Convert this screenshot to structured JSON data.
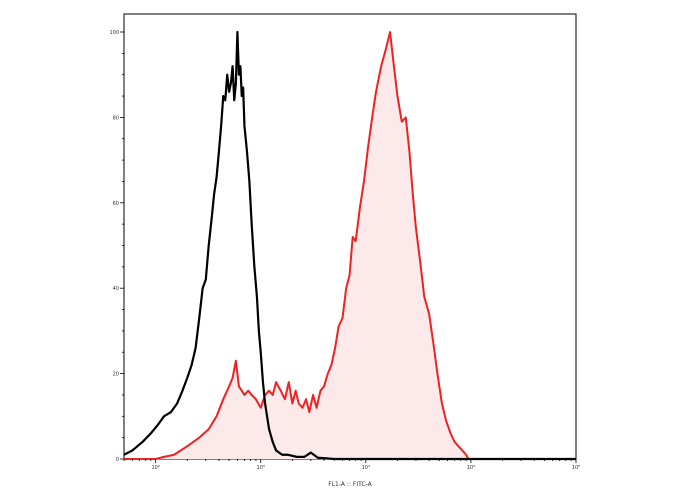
{
  "chart_data": {
    "type": "area",
    "xscale": "log",
    "xlabel": "FL1-A :: FITC-A",
    "ylabel": "",
    "title": "",
    "xlim": [
      50,
      1000000
    ],
    "ylim": [
      0,
      105
    ],
    "x_ticks": [
      {
        "value": 100,
        "label": "10²"
      },
      {
        "value": 1000,
        "label": "10³"
      },
      {
        "value": 10000,
        "label": "10⁴"
      },
      {
        "value": 100000,
        "label": "10⁵"
      },
      {
        "value": 1000000,
        "label": "10⁶"
      }
    ],
    "y_ticks": [
      {
        "value": 0,
        "label": "0"
      },
      {
        "value": 20,
        "label": "20"
      },
      {
        "value": 40,
        "label": "40"
      },
      {
        "value": 60,
        "label": "60"
      },
      {
        "value": 80,
        "label": "80"
      },
      {
        "value": 100,
        "label": "100"
      }
    ],
    "series": [
      {
        "color": "#000000",
        "fill": "none",
        "points": [
          [
            50,
            1
          ],
          [
            60,
            2
          ],
          [
            75,
            4
          ],
          [
            90,
            6
          ],
          [
            105,
            8
          ],
          [
            120,
            10
          ],
          [
            140,
            11
          ],
          [
            160,
            13
          ],
          [
            180,
            16
          ],
          [
            200,
            19
          ],
          [
            220,
            22
          ],
          [
            240,
            26
          ],
          [
            260,
            33
          ],
          [
            280,
            40
          ],
          [
            300,
            42
          ],
          [
            320,
            50
          ],
          [
            340,
            56
          ],
          [
            360,
            62
          ],
          [
            380,
            66
          ],
          [
            400,
            72
          ],
          [
            420,
            78
          ],
          [
            440,
            85
          ],
          [
            460,
            84
          ],
          [
            480,
            90
          ],
          [
            500,
            86
          ],
          [
            520,
            88
          ],
          [
            540,
            92
          ],
          [
            560,
            84
          ],
          [
            580,
            88
          ],
          [
            600,
            100
          ],
          [
            620,
            90
          ],
          [
            640,
            92
          ],
          [
            660,
            85
          ],
          [
            680,
            87
          ],
          [
            700,
            78
          ],
          [
            740,
            72
          ],
          [
            780,
            65
          ],
          [
            820,
            55
          ],
          [
            870,
            45
          ],
          [
            920,
            38
          ],
          [
            960,
            30
          ],
          [
            1000,
            25
          ],
          [
            1050,
            18
          ],
          [
            1100,
            13
          ],
          [
            1200,
            7
          ],
          [
            1300,
            4
          ],
          [
            1400,
            2
          ],
          [
            1600,
            1
          ],
          [
            1800,
            1
          ],
          [
            2200,
            0.5
          ],
          [
            2600,
            0.5
          ],
          [
            3000,
            1.5
          ],
          [
            3500,
            0.3
          ],
          [
            5000,
            0
          ],
          [
            1000000,
            0
          ]
        ]
      },
      {
        "color": "#ee2222",
        "fill": "#fce9e9",
        "points": [
          [
            50,
            0
          ],
          [
            100,
            0
          ],
          [
            120,
            0.5
          ],
          [
            150,
            1
          ],
          [
            200,
            3
          ],
          [
            260,
            5
          ],
          [
            320,
            7
          ],
          [
            380,
            10
          ],
          [
            440,
            14
          ],
          [
            500,
            17
          ],
          [
            540,
            19
          ],
          [
            580,
            23
          ],
          [
            620,
            17
          ],
          [
            660,
            16
          ],
          [
            700,
            15
          ],
          [
            760,
            16
          ],
          [
            820,
            15
          ],
          [
            900,
            14
          ],
          [
            1000,
            12
          ],
          [
            1100,
            15
          ],
          [
            1200,
            16
          ],
          [
            1300,
            15
          ],
          [
            1400,
            18
          ],
          [
            1550,
            16
          ],
          [
            1700,
            14
          ],
          [
            1850,
            18
          ],
          [
            2000,
            13
          ],
          [
            2150,
            16
          ],
          [
            2300,
            13
          ],
          [
            2500,
            12
          ],
          [
            2700,
            14
          ],
          [
            2900,
            11
          ],
          [
            3150,
            15
          ],
          [
            3400,
            12
          ],
          [
            3700,
            16
          ],
          [
            4000,
            17
          ],
          [
            4350,
            20
          ],
          [
            4700,
            22
          ],
          [
            5100,
            26
          ],
          [
            5500,
            31
          ],
          [
            6000,
            33
          ],
          [
            6500,
            40
          ],
          [
            7000,
            43
          ],
          [
            7500,
            52
          ],
          [
            8000,
            51
          ],
          [
            8800,
            59
          ],
          [
            9600,
            65
          ],
          [
            10500,
            73
          ],
          [
            11500,
            80
          ],
          [
            12500,
            86
          ],
          [
            14000,
            92
          ],
          [
            15500,
            96
          ],
          [
            17000,
            100
          ],
          [
            18500,
            92
          ],
          [
            20000,
            85
          ],
          [
            22000,
            79
          ],
          [
            24000,
            80
          ],
          [
            26000,
            72
          ],
          [
            28000,
            62
          ],
          [
            30000,
            54
          ],
          [
            33000,
            46
          ],
          [
            36000,
            38
          ],
          [
            40000,
            34
          ],
          [
            44000,
            27
          ],
          [
            48000,
            20
          ],
          [
            53000,
            13
          ],
          [
            58000,
            9
          ],
          [
            64000,
            6
          ],
          [
            70000,
            4
          ],
          [
            76000,
            3
          ],
          [
            83000,
            2
          ],
          [
            90000,
            1
          ],
          [
            95000,
            0
          ],
          [
            1000000,
            0
          ]
        ]
      }
    ]
  }
}
